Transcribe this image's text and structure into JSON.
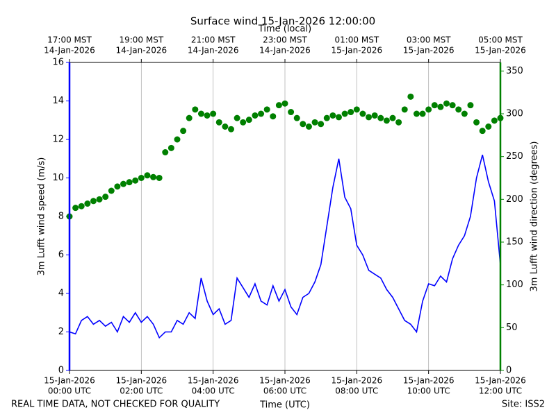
{
  "chart_data": {
    "type": "line",
    "title": "Surface wind 15-Jan-2026 12:00:00",
    "x_label": "Time (UTC)",
    "x2_label": "Time (local)",
    "footnote": "REAL TIME DATA, NOT CHECKED FOR QUALITY",
    "site": "Site: ISS2",
    "grid": "x",
    "xlim": [
      "2026-01-15 00:00",
      "2026-01-15 12:00"
    ],
    "xticks": [
      {
        "value": "2026-01-15 00:00",
        "label": [
          "15-Jan-2026",
          "00:00 UTC"
        ]
      },
      {
        "value": "2026-01-15 02:00",
        "label": [
          "15-Jan-2026",
          "02:00 UTC"
        ]
      },
      {
        "value": "2026-01-15 04:00",
        "label": [
          "15-Jan-2026",
          "04:00 UTC"
        ]
      },
      {
        "value": "2026-01-15 06:00",
        "label": [
          "15-Jan-2026",
          "06:00 UTC"
        ]
      },
      {
        "value": "2026-01-15 08:00",
        "label": [
          "15-Jan-2026",
          "08:00 UTC"
        ]
      },
      {
        "value": "2026-01-15 10:00",
        "label": [
          "15-Jan-2026",
          "10:00 UTC"
        ]
      },
      {
        "value": "2026-01-15 12:00",
        "label": [
          "15-Jan-2026",
          "12:00 UTC"
        ]
      }
    ],
    "x2ticks": [
      {
        "value": "2026-01-15 00:00",
        "label": [
          "17:00 MST",
          "14-Jan-2026"
        ]
      },
      {
        "value": "2026-01-15 02:00",
        "label": [
          "19:00 MST",
          "14-Jan-2026"
        ]
      },
      {
        "value": "2026-01-15 04:00",
        "label": [
          "21:00 MST",
          "14-Jan-2026"
        ]
      },
      {
        "value": "2026-01-15 06:00",
        "label": [
          "23:00 MST",
          "14-Jan-2026"
        ]
      },
      {
        "value": "2026-01-15 08:00",
        "label": [
          "01:00 MST",
          "15-Jan-2026"
        ]
      },
      {
        "value": "2026-01-15 10:00",
        "label": [
          "03:00 MST",
          "15-Jan-2026"
        ]
      },
      {
        "value": "2026-01-15 12:00",
        "label": [
          "05:00 MST",
          "15-Jan-2026"
        ]
      }
    ],
    "ylim": [
      0,
      16
    ],
    "yticks": [
      0,
      2,
      4,
      6,
      8,
      10,
      12,
      14,
      16
    ],
    "y2lim": [
      0,
      360
    ],
    "y2ticks": [
      0,
      50,
      100,
      150,
      200,
      250,
      300,
      350
    ],
    "x": [
      "2026-01-15 00:00",
      "2026-01-15 00:10",
      "2026-01-15 00:20",
      "2026-01-15 00:30",
      "2026-01-15 00:40",
      "2026-01-15 00:50",
      "2026-01-15 01:00",
      "2026-01-15 01:10",
      "2026-01-15 01:20",
      "2026-01-15 01:30",
      "2026-01-15 01:40",
      "2026-01-15 01:50",
      "2026-01-15 02:00",
      "2026-01-15 02:10",
      "2026-01-15 02:20",
      "2026-01-15 02:30",
      "2026-01-15 02:40",
      "2026-01-15 02:50",
      "2026-01-15 03:00",
      "2026-01-15 03:10",
      "2026-01-15 03:20",
      "2026-01-15 03:30",
      "2026-01-15 03:40",
      "2026-01-15 03:50",
      "2026-01-15 04:00",
      "2026-01-15 04:10",
      "2026-01-15 04:20",
      "2026-01-15 04:30",
      "2026-01-15 04:40",
      "2026-01-15 04:50",
      "2026-01-15 05:00",
      "2026-01-15 05:10",
      "2026-01-15 05:20",
      "2026-01-15 05:30",
      "2026-01-15 05:40",
      "2026-01-15 05:50",
      "2026-01-15 06:00",
      "2026-01-15 06:10",
      "2026-01-15 06:20",
      "2026-01-15 06:30",
      "2026-01-15 06:40",
      "2026-01-15 06:50",
      "2026-01-15 07:00",
      "2026-01-15 07:10",
      "2026-01-15 07:20",
      "2026-01-15 07:30",
      "2026-01-15 07:40",
      "2026-01-15 07:50",
      "2026-01-15 08:00",
      "2026-01-15 08:10",
      "2026-01-15 08:20",
      "2026-01-15 08:30",
      "2026-01-15 08:40",
      "2026-01-15 08:50",
      "2026-01-15 09:00",
      "2026-01-15 09:10",
      "2026-01-15 09:20",
      "2026-01-15 09:30",
      "2026-01-15 09:40",
      "2026-01-15 09:50",
      "2026-01-15 10:00",
      "2026-01-15 10:10",
      "2026-01-15 10:20",
      "2026-01-15 10:30",
      "2026-01-15 10:40",
      "2026-01-15 10:50",
      "2026-01-15 11:00",
      "2026-01-15 11:10",
      "2026-01-15 11:20",
      "2026-01-15 11:30",
      "2026-01-15 11:40",
      "2026-01-15 11:50",
      "2026-01-15 12:00"
    ],
    "series": [
      {
        "name": "3m Lufft wind speed (m/s)",
        "color": "#0000ff",
        "type": "line",
        "values": [
          2.0,
          1.9,
          2.6,
          2.8,
          2.4,
          2.6,
          2.3,
          2.5,
          2.0,
          2.8,
          2.5,
          3.0,
          2.5,
          2.8,
          2.4,
          1.7,
          2.0,
          2.0,
          2.6,
          2.4,
          3.0,
          2.7,
          4.8,
          3.6,
          2.9,
          3.2,
          2.4,
          2.6,
          4.8,
          4.3,
          3.8,
          4.5,
          3.6,
          3.4,
          4.4,
          3.6,
          4.2,
          3.3,
          2.9,
          3.8,
          4.0,
          4.6,
          5.5,
          7.5,
          9.5,
          11.0,
          9.0,
          8.4,
          6.5,
          6.0,
          5.2,
          5.0,
          4.8,
          4.2,
          3.8,
          3.2,
          2.6,
          2.4,
          2.0,
          3.6,
          4.5,
          4.4,
          4.9,
          4.6,
          5.8,
          6.5,
          7.0,
          8.0,
          10.0,
          11.2,
          9.8,
          8.8,
          5.5
        ]
      },
      {
        "name": "3m Lufft wind direction (degrees)",
        "color": "#008000",
        "type": "scatter",
        "axis": "y2",
        "values": [
          180,
          190,
          192,
          195,
          198,
          200,
          203,
          210,
          215,
          218,
          220,
          222,
          225,
          228,
          226,
          225,
          255,
          260,
          270,
          280,
          295,
          305,
          300,
          298,
          300,
          290,
          285,
          282,
          295,
          290,
          293,
          298,
          300,
          305,
          297,
          310,
          312,
          302,
          295,
          288,
          285,
          290,
          288,
          295,
          298,
          296,
          300,
          302,
          305,
          300,
          296,
          298,
          295,
          292,
          295,
          290,
          305,
          320,
          300,
          300,
          305,
          310,
          308,
          312,
          310,
          305,
          300,
          310,
          290,
          280,
          285,
          292,
          295
        ]
      }
    ]
  }
}
